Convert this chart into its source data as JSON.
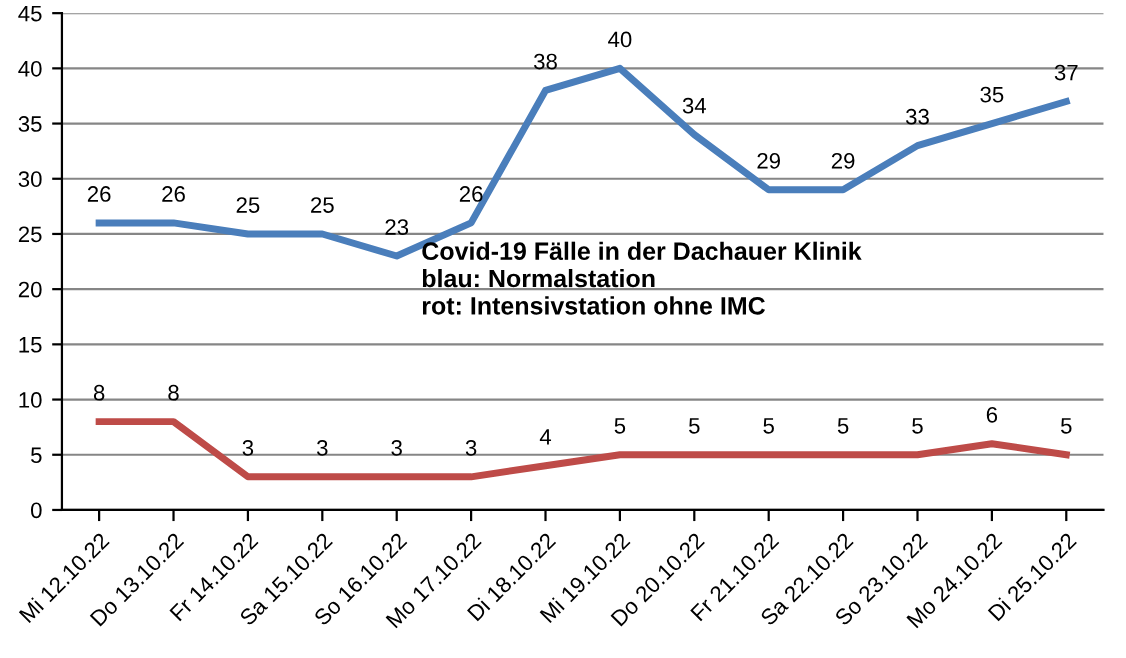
{
  "chart_data": {
    "type": "line",
    "categories": [
      "Mi 12.10.22",
      "Do 13.10.22",
      "Fr 14.10.22",
      "Sa 15.10.22",
      "So 16.10.22",
      "Mo 17.10.22",
      "Di 18.10.22",
      "Mi 19.10.22",
      "Do 20.10.22",
      "Fr 21.10.22",
      "Sa 22.10.22",
      "So 23.10.22",
      "Mo 24.10.22",
      "Di 25.10.22"
    ],
    "series": [
      {
        "color": "#4a7ebb",
        "values": [
          26,
          26,
          25,
          25,
          23,
          26,
          38,
          40,
          34,
          29,
          29,
          33,
          35,
          37
        ]
      },
      {
        "color": "#be4b48",
        "values": [
          8,
          8,
          3,
          3,
          3,
          3,
          4,
          5,
          5,
          5,
          5,
          5,
          6,
          5
        ]
      }
    ],
    "ylim": [
      0,
      45
    ],
    "yticks": [
      0,
      5,
      10,
      15,
      20,
      25,
      30,
      35,
      40,
      45
    ],
    "grid": "y",
    "data_labels": true,
    "marker": "none",
    "line_style": "solid",
    "annotations": [
      "Covid-19 Fälle in der Dachauer Klinik",
      "blau: Normalstation",
      "rot: Intensivstation ohne IMC"
    ]
  }
}
